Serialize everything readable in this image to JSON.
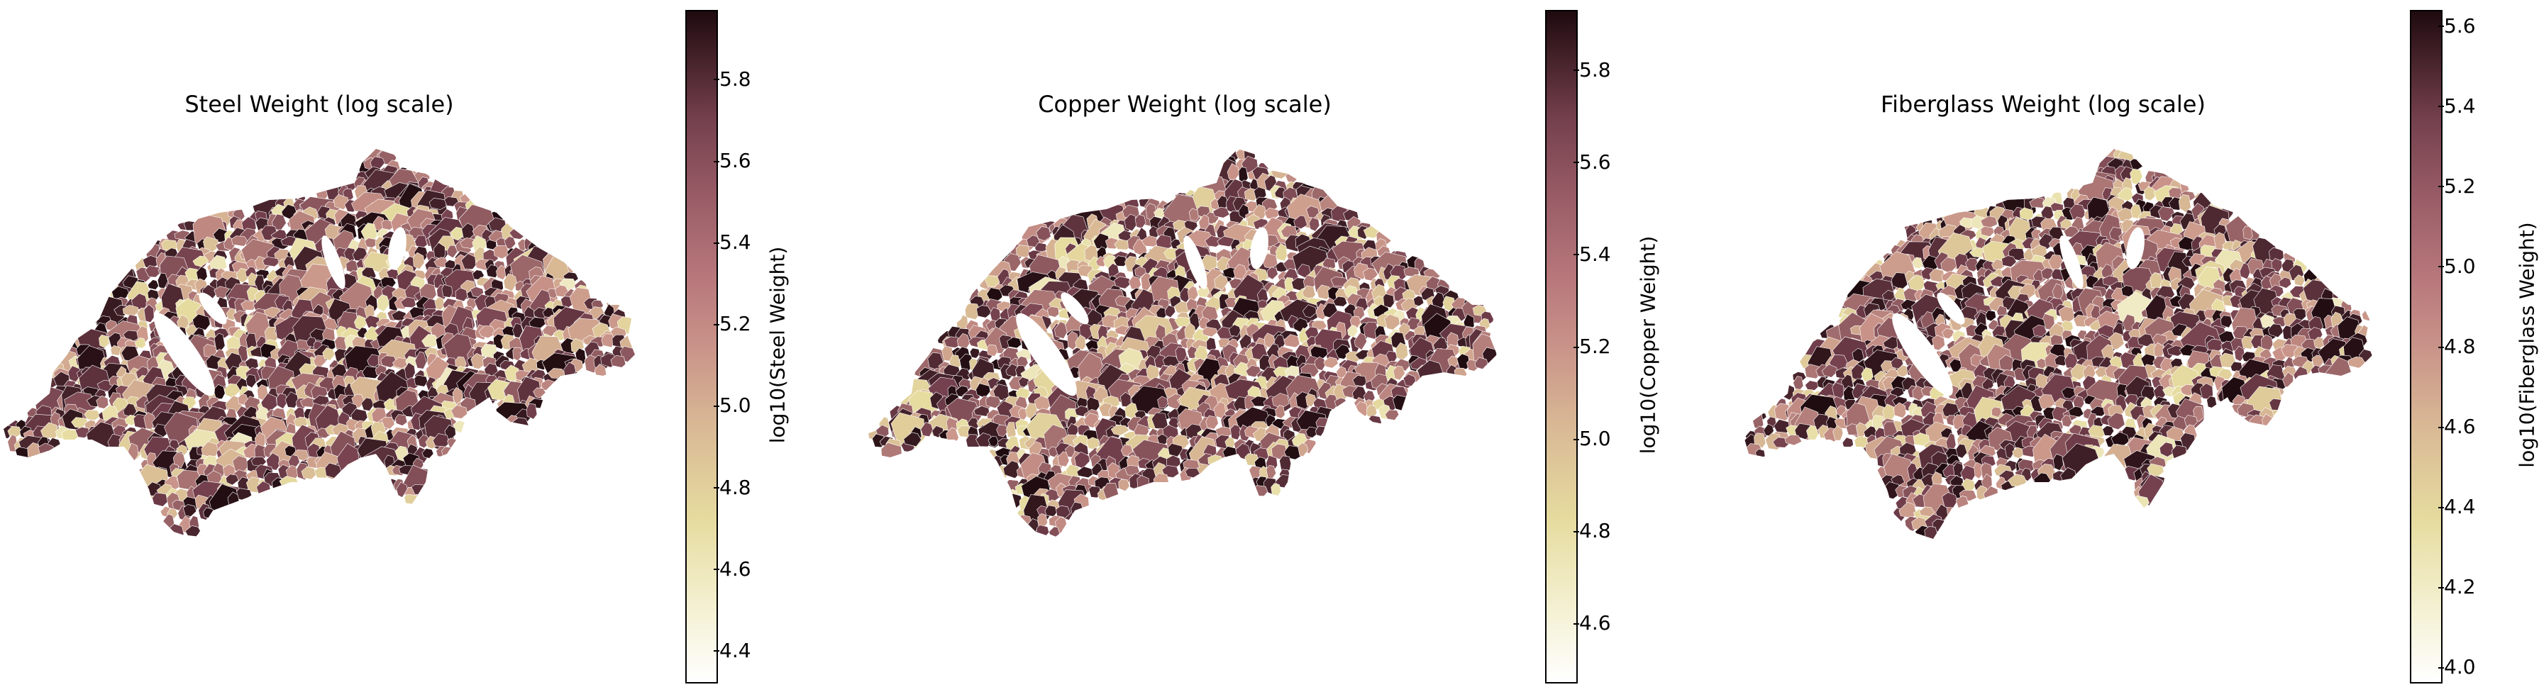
{
  "figure": {
    "panels": [
      {
        "title": "Steel Weight (log scale)",
        "colorbar_label": "log10(Steel Weight)",
        "ticks": [
          "5.8",
          "5.6",
          "5.4",
          "5.2",
          "5.0",
          "4.8",
          "4.6",
          "4.4"
        ],
        "tick_values": [
          5.8,
          5.6,
          5.4,
          5.2,
          5.0,
          4.8,
          4.6,
          4.4
        ],
        "vmin": 4.32,
        "vmax": 5.97,
        "seed": 11
      },
      {
        "title": "Copper Weight (log scale)",
        "colorbar_label": "log10(Copper Weight)",
        "ticks": [
          "5.8",
          "5.6",
          "5.4",
          "5.2",
          "5.0",
          "4.8",
          "4.6"
        ],
        "tick_values": [
          5.8,
          5.6,
          5.4,
          5.2,
          5.0,
          4.8,
          4.6
        ],
        "vmin": 4.47,
        "vmax": 5.93,
        "seed": 29
      },
      {
        "title": "Fiberglass Weight (log scale)",
        "colorbar_label": "log10(Fiberglass Weight)",
        "ticks": [
          "5.6",
          "5.4",
          "5.2",
          "5.0",
          "4.8",
          "4.6",
          "4.4",
          "4.2",
          "4.0"
        ],
        "tick_values": [
          5.6,
          5.4,
          5.2,
          5.0,
          4.8,
          4.6,
          4.4,
          4.2,
          4.0
        ],
        "vmin": 3.96,
        "vmax": 5.64,
        "seed": 47
      }
    ],
    "colormap": [
      "#ffffff",
      "#e6dc9f",
      "#c99389",
      "#74404d",
      "#1e0b0f"
    ]
  }
}
